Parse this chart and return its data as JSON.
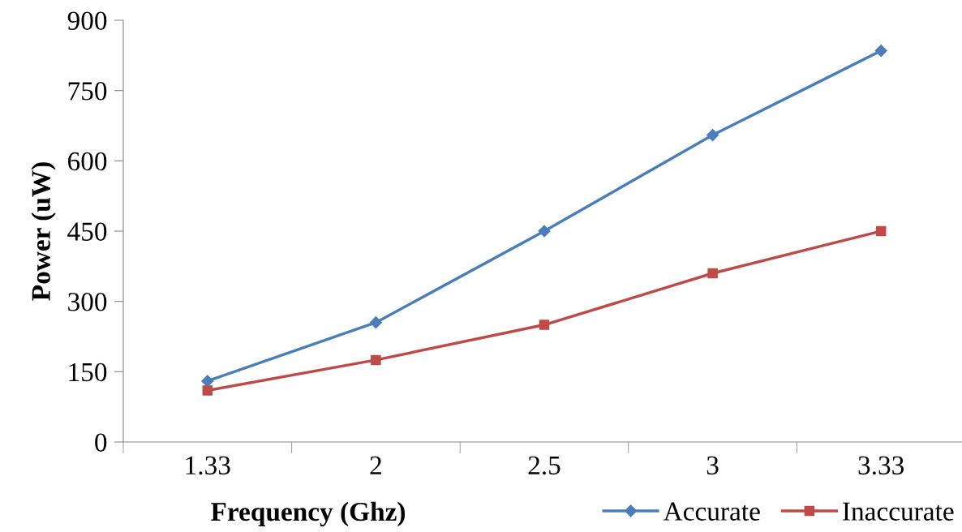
{
  "chart_data": {
    "type": "line",
    "xlabel": "Frequency (Ghz)",
    "ylabel": "Power (uW)",
    "categories": [
      "1.33",
      "2",
      "2.5",
      "3",
      "3.33"
    ],
    "series": [
      {
        "name": "Accurate",
        "color": "#4a7ebb",
        "marker": "diamond",
        "values": [
          130,
          255,
          450,
          655,
          835
        ]
      },
      {
        "name": "Inaccurate",
        "color": "#be4b48",
        "marker": "square",
        "values": [
          110,
          175,
          250,
          360,
          450
        ]
      }
    ],
    "ylim": [
      0,
      900
    ],
    "yticks": [
      0,
      150,
      300,
      450,
      600,
      750,
      900
    ],
    "legend": "bottom right",
    "line_style": "solid"
  }
}
